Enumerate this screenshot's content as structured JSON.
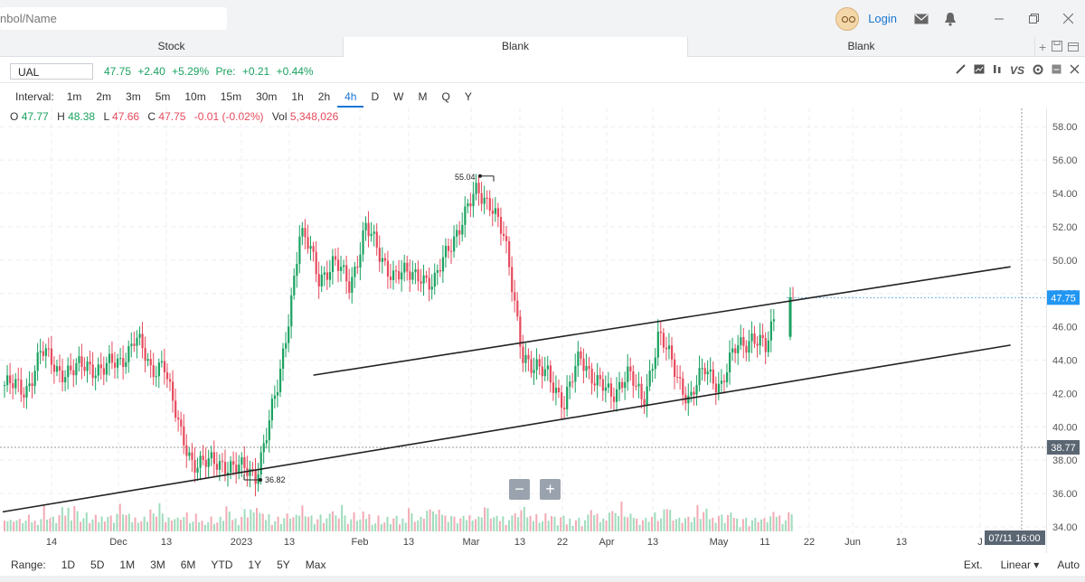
{
  "search": {
    "placeholder": "nbol/Name"
  },
  "header": {
    "login_label": "Login"
  },
  "tabs": [
    {
      "label": "Stock"
    },
    {
      "label": "Blank"
    },
    {
      "label": "Blank"
    }
  ],
  "quote": {
    "symbol": "UAL",
    "last": "47.75",
    "change": "+2.40",
    "change_pct": "+5.29%",
    "pre_label": "Pre:",
    "pre_change": "+0.21",
    "pre_change_pct": "+0.44%"
  },
  "intervals": {
    "label": "Interval:",
    "items": [
      "1m",
      "2m",
      "3m",
      "5m",
      "10m",
      "15m",
      "30m",
      "1h",
      "2h",
      "4h",
      "D",
      "W",
      "M",
      "Q",
      "Y"
    ],
    "active": "4h"
  },
  "ohlc": {
    "o_label": "O",
    "o": "47.77",
    "h_label": "H",
    "h": "48.38",
    "l_label": "L",
    "l": "47.66",
    "c_label": "C",
    "c": "47.75",
    "change": "-0.01 (-0.02%)",
    "vol_label": "Vol",
    "vol": "5,348,026"
  },
  "ranges": [
    "1D",
    "5D",
    "1M",
    "3M",
    "6M",
    "YTD",
    "1Y",
    "5Y",
    "Max"
  ],
  "range_label": "Range:",
  "scale": {
    "ext": "Ext.",
    "mode": "Linear",
    "auto": "Auto"
  },
  "zoom": {
    "minus": "−",
    "plus": "+"
  },
  "colors": {
    "up": "#1aa260",
    "down": "#e64a5c",
    "accent": "#1976d2"
  },
  "chart_data": {
    "type": "candlestick",
    "y_ticks": [
      "34.00",
      "36.00",
      "38.00",
      "40.00",
      "42.00",
      "44.00",
      "46.00",
      "48.00",
      "50.00",
      "52.00",
      "54.00",
      "56.00",
      "58.00"
    ],
    "ylim": [
      34,
      59
    ],
    "x_ticks": [
      "14",
      "Dec",
      "13",
      "2023",
      "13",
      "Feb",
      "13",
      "Mar",
      "13",
      "22",
      "Apr",
      "13",
      "May",
      "11",
      "22",
      "Jun",
      "13",
      "J"
    ],
    "last_price_label": "47.75",
    "crosshair_price_label": "38.77",
    "crosshair_time_label": "07/11 16:00",
    "annotations": [
      {
        "text": "55.04",
        "value": 55.04
      },
      {
        "text": "36.82",
        "value": 36.82
      }
    ],
    "trendlines": [
      {
        "name": "lower channel",
        "from": [
          0.0,
          34.9
        ],
        "to": [
          0.966,
          44.9
        ]
      },
      {
        "name": "upper channel",
        "from": [
          0.297,
          43.1
        ],
        "to": [
          0.966,
          49.6
        ]
      }
    ],
    "price_path": [
      [
        0.0,
        42.5
      ],
      [
        0.02,
        42.2
      ],
      [
        0.035,
        44.5
      ],
      [
        0.05,
        43.5
      ],
      [
        0.065,
        43.3
      ],
      [
        0.08,
        43.7
      ],
      [
        0.095,
        43.5
      ],
      [
        0.11,
        43.8
      ],
      [
        0.125,
        45.5
      ],
      [
        0.14,
        43.2
      ],
      [
        0.152,
        44.2
      ],
      [
        0.16,
        41.5
      ],
      [
        0.168,
        39.5
      ],
      [
        0.18,
        38.0
      ],
      [
        0.195,
        37.7
      ],
      [
        0.21,
        37.9
      ],
      [
        0.225,
        37.4
      ],
      [
        0.24,
        37.2
      ],
      [
        0.25,
        39.5
      ],
      [
        0.262,
        42.5
      ],
      [
        0.27,
        46.0
      ],
      [
        0.282,
        51.5
      ],
      [
        0.292,
        50.6
      ],
      [
        0.3,
        49.0
      ],
      [
        0.315,
        49.8
      ],
      [
        0.33,
        48.5
      ],
      [
        0.345,
        52.0
      ],
      [
        0.358,
        50.3
      ],
      [
        0.372,
        49.2
      ],
      [
        0.385,
        49.0
      ],
      [
        0.398,
        49.3
      ],
      [
        0.41,
        48.3
      ],
      [
        0.425,
        51.0
      ],
      [
        0.44,
        52.6
      ],
      [
        0.452,
        54.2
      ],
      [
        0.465,
        53.5
      ],
      [
        0.478,
        51.0
      ],
      [
        0.488,
        47.5
      ],
      [
        0.495,
        44.5
      ],
      [
        0.505,
        43.2
      ],
      [
        0.52,
        43.5
      ],
      [
        0.535,
        41.0
      ],
      [
        0.55,
        44.6
      ],
      [
        0.565,
        42.5
      ],
      [
        0.58,
        42.0
      ],
      [
        0.595,
        43.2
      ],
      [
        0.61,
        41.5
      ],
      [
        0.625,
        45.5
      ],
      [
        0.64,
        43.5
      ],
      [
        0.655,
        41.6
      ],
      [
        0.67,
        43.5
      ],
      [
        0.685,
        42.5
      ],
      [
        0.7,
        44.8
      ],
      [
        0.715,
        45.5
      ],
      [
        0.728,
        44.5
      ],
      [
        0.738,
        47.2
      ]
    ],
    "volume_heights": [
      0.5,
      0.3,
      0.2,
      0.4,
      0.3,
      0.2,
      0.3,
      0.25,
      0.35,
      0.3,
      0.2,
      0.3,
      0.4,
      0.9,
      0.5,
      0.4,
      0.3,
      0.3,
      0.5,
      0.7,
      0.6,
      0.8,
      0.5,
      1.0,
      0.6,
      0.4,
      0.4,
      0.5,
      0.3,
      0.3,
      0.35,
      0.3,
      0.4,
      0.45,
      0.5,
      0.4,
      0.35,
      0.6,
      0.9,
      0.7,
      0.5,
      0.4,
      0.3,
      0.35,
      0.4,
      0.3,
      0.35,
      0.4,
      0.8,
      0.45,
      0.6,
      1.05,
      0.4,
      0.3,
      0.35,
      0.5,
      0.4,
      0.3,
      0.5,
      0.45
    ]
  }
}
